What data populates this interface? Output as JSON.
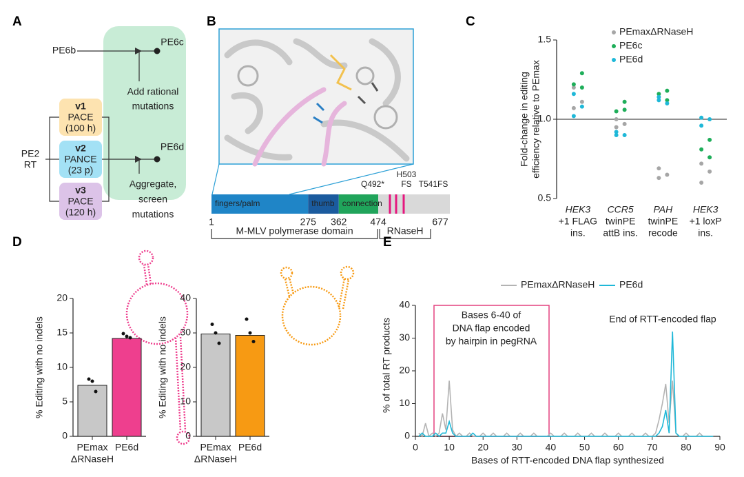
{
  "panels": {
    "A": {
      "letter": "A",
      "start": [
        "PE2",
        "RT"
      ],
      "variants": [
        {
          "name": "v1",
          "lines": [
            "PACE",
            "(100 h)"
          ]
        },
        {
          "name": "v2",
          "lines": [
            "PANCE",
            "(23 p)"
          ]
        },
        {
          "name": "v3",
          "lines": [
            "PACE",
            "(120 h)"
          ]
        }
      ],
      "input": "PE6b",
      "outputs": [
        {
          "name": "PE6c",
          "caption": [
            "Add rational",
            "mutations"
          ]
        },
        {
          "name": "PE6d",
          "caption": [
            "Aggregate,",
            "screen",
            "mutations"
          ]
        }
      ]
    },
    "B": {
      "letter": "B",
      "domains": [
        "fingers/palm",
        "thumb",
        "connection"
      ],
      "boundaries": [
        1,
        275,
        362,
        474,
        677
      ],
      "mutations": [
        [
          "Q492*"
        ],
        [
          "H503",
          "FS"
        ],
        [
          "T541FS"
        ]
      ],
      "regions": [
        "M-MLV polymerase domain",
        "RNaseH"
      ]
    }
  },
  "chart_data": [
    {
      "panel": "C",
      "type": "strip",
      "ylabel": [
        "Fold-change in editing",
        "efficiency relative to PEmax"
      ],
      "categories": [
        [
          "HEK3",
          "+1 FLAG",
          "ins."
        ],
        [
          "CCR5",
          "twinPE",
          "attB ins."
        ],
        [
          "PAH",
          "twinPE",
          "recode"
        ],
        [
          "HEK3",
          "+1 loxP",
          "ins."
        ]
      ],
      "series": [
        {
          "name": "PEmaxΔRNaseH",
          "color": "#a6a6a6",
          "values": [
            [
              1.2,
              1.11,
              1.07
            ],
            [
              1.0,
              0.97,
              0.95
            ],
            [
              0.69,
              0.65,
              0.63
            ],
            [
              0.72,
              0.67,
              0.6
            ]
          ]
        },
        {
          "name": "PE6c",
          "color": "#1fae5a",
          "values": [
            [
              1.29,
              1.22,
              1.2
            ],
            [
              1.11,
              1.05,
              1.06
            ],
            [
              1.18,
              1.16,
              1.12
            ],
            [
              0.87,
              0.81,
              0.76
            ]
          ]
        },
        {
          "name": "PE6d",
          "color": "#1fb8d8",
          "values": [
            [
              1.16,
              1.08,
              1.02
            ],
            [
              0.92,
              0.9,
              0.9
            ],
            [
              1.14,
              1.1,
              1.12
            ],
            [
              1.01,
              1.0,
              0.96
            ]
          ]
        }
      ],
      "ylim": [
        0.5,
        1.5
      ],
      "yticks": [
        {
          "value": 0.5,
          "label": "0.5"
        },
        {
          "value": 1,
          "label": "1.0"
        },
        {
          "value": 1.5,
          "label": "1.5"
        }
      ],
      "reference_line": 1
    },
    {
      "panel": "D",
      "type": "bar",
      "ylabel": "% Editing with no indels",
      "categories": [
        [
          "PEmax",
          "ΔRNaseH"
        ],
        [
          "PE6d"
        ]
      ],
      "values": [
        7.4,
        14.2
      ],
      "colors": [
        "#c8c8c8",
        "#ee3f8e"
      ],
      "points": [
        [
          8.3,
          8.0,
          6.5
        ],
        [
          14.9,
          14.5,
          14.3
        ]
      ],
      "ylim": [
        0,
        20
      ],
      "yticks": [
        0,
        5,
        10,
        15,
        20
      ]
    },
    {
      "type": "bar",
      "ylabel": "% Editing with no indels",
      "categories": [
        [
          "PEmax",
          "ΔRNaseH"
        ],
        [
          "PE6d"
        ]
      ],
      "values": [
        29.7,
        29.3
      ],
      "colors": [
        "#c8c8c8",
        "#f79a13"
      ],
      "points": [
        [
          32.5,
          30.0,
          27.0
        ],
        [
          34.0,
          30.0,
          27.5
        ]
      ],
      "ylim": [
        0,
        40
      ],
      "yticks": [
        0,
        10,
        20,
        30,
        40
      ]
    },
    {
      "panel": "E",
      "type": "line",
      "xlabel": "Bases of RTT-encoded DNA flap synthesized",
      "ylabel": "% of total RT products",
      "x": [
        1,
        2,
        3,
        4,
        5,
        6,
        7,
        8,
        9,
        10,
        11,
        12,
        13,
        14,
        15,
        16,
        17,
        18,
        19,
        20,
        21,
        22,
        23,
        24,
        25,
        26,
        27,
        28,
        29,
        30,
        31,
        32,
        33,
        34,
        35,
        36,
        37,
        38,
        39,
        40,
        41,
        42,
        43,
        44,
        45,
        46,
        47,
        48,
        49,
        50,
        51,
        52,
        53,
        54,
        55,
        56,
        57,
        58,
        59,
        60,
        61,
        62,
        63,
        64,
        65,
        66,
        67,
        68,
        69,
        70,
        71,
        72,
        73,
        74,
        75,
        76,
        77,
        78,
        79,
        80,
        81,
        82,
        83,
        84,
        85,
        86,
        87,
        88
      ],
      "series": [
        {
          "name": "PEmaxΔRNaseH",
          "color": "#b3b3b3",
          "values": [
            1,
            0,
            4,
            0,
            1,
            0,
            1,
            7,
            2,
            17,
            2,
            0,
            1,
            0,
            0,
            1,
            0,
            0,
            0,
            1,
            0,
            0,
            1,
            0,
            0,
            0,
            1,
            0,
            0,
            0,
            1,
            0,
            0,
            0,
            1,
            0,
            0,
            0,
            0,
            1,
            0,
            0,
            0,
            1,
            0,
            0,
            0,
            1,
            0,
            0,
            0,
            1,
            0,
            0,
            0,
            1,
            0,
            0,
            0,
            1,
            0,
            0,
            0,
            1,
            0,
            0,
            0,
            1,
            0,
            0,
            1,
            5,
            10,
            16,
            4,
            17,
            1,
            0,
            0,
            1,
            0,
            0,
            0,
            1,
            0,
            0,
            0,
            0
          ]
        },
        {
          "name": "PE6d",
          "color": "#1fb8d8",
          "values": [
            0,
            1,
            0,
            0,
            0,
            1,
            0,
            1,
            1,
            4.5,
            1,
            0,
            0,
            0,
            0,
            0,
            1,
            0,
            0,
            0,
            0,
            0,
            0,
            0,
            0,
            0,
            0,
            0,
            0,
            0,
            0,
            0,
            0,
            0,
            0,
            0,
            0,
            0,
            0,
            0,
            0,
            0,
            0,
            0,
            0,
            0,
            0,
            0,
            0,
            0,
            0,
            0,
            0,
            0,
            0,
            0,
            0,
            0,
            0,
            0,
            0,
            0,
            0,
            0,
            0,
            0,
            0,
            0,
            0,
            0,
            0,
            1,
            3,
            8,
            1,
            32,
            1,
            0,
            0,
            0,
            0,
            0,
            0,
            0,
            0,
            0,
            0,
            0
          ]
        }
      ],
      "xlim": [
        0,
        90
      ],
      "xticks": [
        0,
        10,
        20,
        30,
        40,
        50,
        60,
        70,
        80,
        90
      ],
      "ylim": [
        0,
        40
      ],
      "yticks": [
        0,
        10,
        20,
        30,
        40
      ],
      "annotations": [
        [
          "Bases 6-40 of",
          "DNA flap encoded",
          "by hairpin in pegRNA"
        ],
        [
          "End of RTT-encoded flap"
        ]
      ]
    }
  ]
}
